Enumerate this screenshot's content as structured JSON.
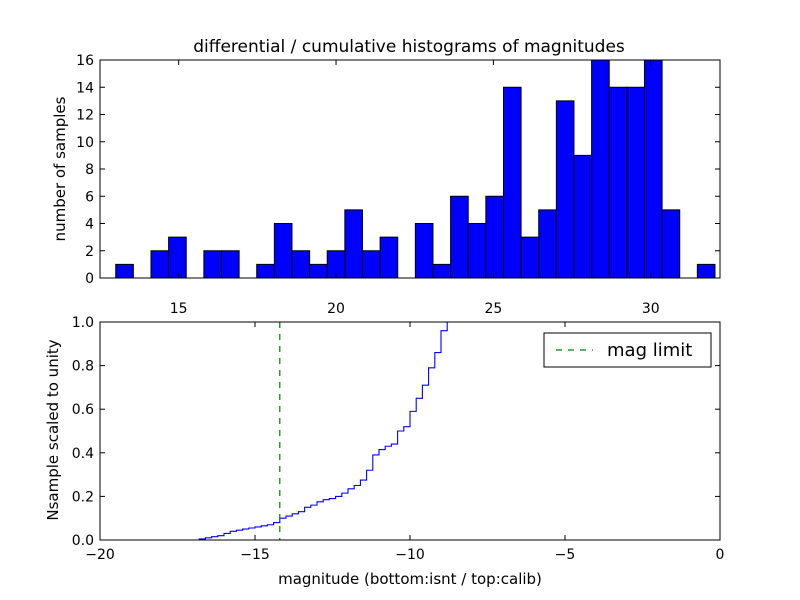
{
  "chart_data": [
    {
      "type": "bar",
      "title": "differential / cumulative histograms of magnitudes",
      "ylabel": "number of samples",
      "xlabel": "",
      "xlim": [
        12.5,
        32.2
      ],
      "ylim": [
        0,
        16
      ],
      "xticks": [
        15,
        20,
        25,
        30
      ],
      "yticks": [
        0,
        2,
        4,
        6,
        8,
        10,
        12,
        14,
        16
      ],
      "xtick_position": "bottom",
      "color": "#0000ff",
      "bin_width": 0.56,
      "bin_starts": [
        13.0,
        13.56,
        14.12,
        14.68,
        15.24,
        15.8,
        16.36,
        16.92,
        17.48,
        18.04,
        18.6,
        19.16,
        19.72,
        20.28,
        20.84,
        21.4,
        21.96,
        22.52,
        23.08,
        23.64,
        24.2,
        24.76,
        25.32,
        25.88,
        26.44,
        27.0,
        27.56,
        28.12,
        28.68,
        29.24,
        29.8,
        30.36,
        30.92,
        31.48
      ],
      "values": [
        1,
        0,
        2,
        3,
        0,
        2,
        2,
        0,
        1,
        4,
        2,
        1,
        2,
        5,
        2,
        3,
        0,
        4,
        1,
        6,
        4,
        6,
        14,
        3,
        5,
        13,
        9,
        16,
        14,
        14,
        16,
        5,
        0,
        1
      ]
    },
    {
      "type": "line",
      "step": true,
      "ylabel": "Nsample scaled to unity",
      "xlabel": "magnitude (bottom:isnt / top:calib)",
      "xlim": [
        -20,
        0
      ],
      "ylim": [
        0,
        1
      ],
      "xticks": [
        -20,
        -15,
        -10,
        -5,
        0
      ],
      "xtick_labels": [
        "−20",
        "−15",
        "−10",
        "−5",
        "0"
      ],
      "yticks": [
        0.0,
        0.2,
        0.4,
        0.6,
        0.8,
        1.0
      ],
      "ytick_labels": [
        "0.0",
        "0.2",
        "0.4",
        "0.6",
        "0.8",
        "1.0"
      ],
      "series": [
        {
          "color": "#0000ff",
          "x": [
            -20,
            -16.8,
            -16.6,
            -16.4,
            -16.2,
            -16.0,
            -15.8,
            -15.6,
            -15.4,
            -15.2,
            -15.0,
            -14.8,
            -14.6,
            -14.4,
            -14.2,
            -14.0,
            -13.8,
            -13.6,
            -13.4,
            -13.2,
            -13.0,
            -12.8,
            -12.6,
            -12.4,
            -12.2,
            -12.0,
            -11.8,
            -11.6,
            -11.4,
            -11.2,
            -11.0,
            -10.8,
            -10.6,
            -10.4,
            -10.2,
            -10.0,
            -9.8,
            -9.6,
            -9.4,
            -9.2,
            -9.0,
            -8.8,
            -8.5
          ],
          "y": [
            0.0,
            0.005,
            0.01,
            0.015,
            0.02,
            0.03,
            0.04,
            0.045,
            0.05,
            0.055,
            0.06,
            0.065,
            0.07,
            0.08,
            0.1,
            0.11,
            0.12,
            0.13,
            0.15,
            0.16,
            0.175,
            0.185,
            0.19,
            0.2,
            0.215,
            0.235,
            0.25,
            0.275,
            0.32,
            0.39,
            0.415,
            0.43,
            0.44,
            0.5,
            0.52,
            0.59,
            0.65,
            0.71,
            0.79,
            0.86,
            0.96,
            1.0,
            1.0
          ]
        },
        {
          "name": "mag limit",
          "color": "#007f00",
          "dashed": true,
          "vertical_x": -14.2
        }
      ],
      "legend": {
        "position": "top-right"
      }
    }
  ]
}
